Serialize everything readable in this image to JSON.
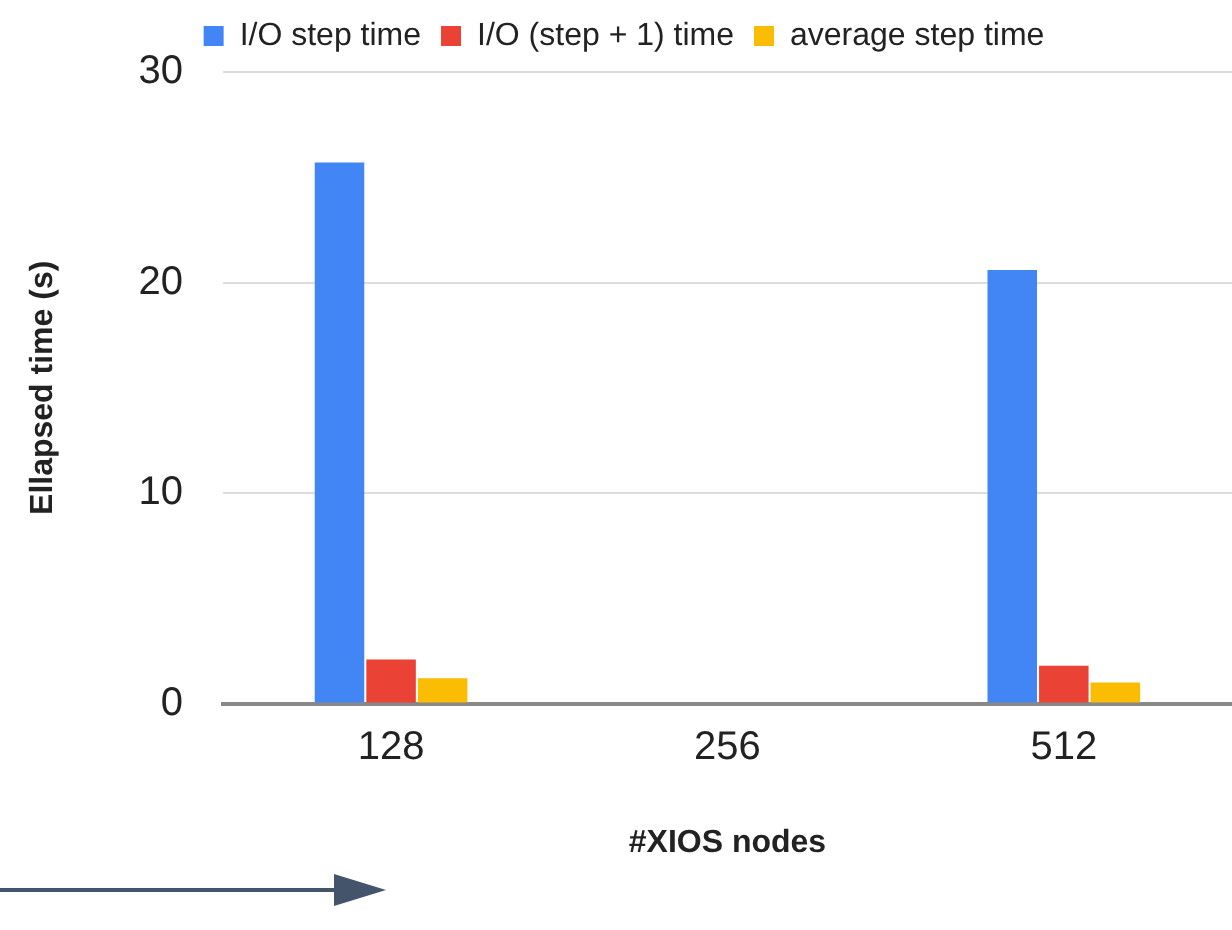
{
  "chart_data": {
    "type": "bar",
    "xlabel": "#XIOS nodes",
    "ylabel": "Ellapsed time (s)",
    "categories": [
      "128",
      "256",
      "512"
    ],
    "series": [
      {
        "name": "I/O step time",
        "color": "#4285f4",
        "values": [
          25.7,
          null,
          20.6
        ]
      },
      {
        "name": "I/O (step + 1) time",
        "color": "#ea4335",
        "values": [
          2.1,
          null,
          1.8
        ]
      },
      {
        "name": "average step time",
        "color": "#fbbc04",
        "values": [
          1.2,
          null,
          1.0
        ]
      }
    ],
    "ylim": [
      0,
      30
    ],
    "yticks": [
      0,
      10,
      20,
      30
    ],
    "grid": "y",
    "legend": "top"
  }
}
